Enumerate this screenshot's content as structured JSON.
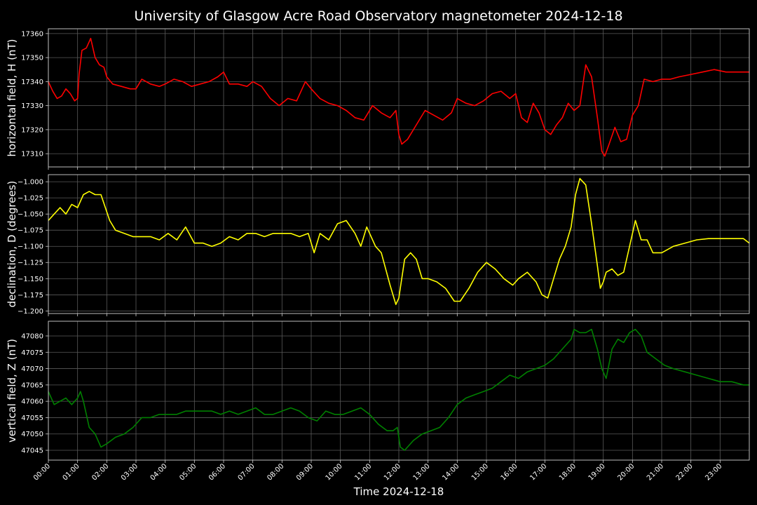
{
  "figure": {
    "title": "University of Glasgow Acre Road Observatory magnetometer 2024-12-18",
    "xlabel": "Time 2024-12-18",
    "background": "#000000",
    "grid_color": "#5a5a5a"
  },
  "chart_data": [
    {
      "type": "line",
      "name": "H",
      "ylabel": "horizontal field, H (nT)",
      "color": "#ff0000",
      "xlim": [
        0,
        24
      ],
      "ylim": [
        17304.5,
        17362
      ],
      "yticks": [
        17310,
        17320,
        17330,
        17340,
        17350,
        17360
      ],
      "ytick_labels": [
        "17310",
        "17320",
        "17330",
        "17340",
        "17350",
        "17360"
      ],
      "grid": true,
      "x": [
        0.0,
        0.15,
        0.3,
        0.45,
        0.6,
        0.75,
        0.9,
        1.0,
        1.05,
        1.15,
        1.3,
        1.45,
        1.6,
        1.75,
        1.9,
        2.0,
        2.2,
        2.5,
        2.8,
        3.0,
        3.2,
        3.5,
        3.8,
        4.0,
        4.3,
        4.6,
        4.9,
        5.2,
        5.5,
        5.8,
        6.0,
        6.2,
        6.5,
        6.8,
        7.0,
        7.3,
        7.6,
        7.9,
        8.2,
        8.5,
        8.8,
        9.0,
        9.3,
        9.6,
        9.9,
        10.2,
        10.5,
        10.8,
        11.1,
        11.4,
        11.7,
        11.9,
        12.0,
        12.1,
        12.3,
        12.6,
        12.9,
        13.2,
        13.5,
        13.8,
        14.0,
        14.3,
        14.6,
        14.9,
        15.2,
        15.5,
        15.8,
        16.0,
        16.2,
        16.4,
        16.6,
        16.8,
        17.0,
        17.2,
        17.4,
        17.6,
        17.8,
        18.0,
        18.2,
        18.4,
        18.6,
        18.8,
        18.95,
        19.05,
        19.2,
        19.4,
        19.6,
        19.8,
        20.0,
        20.2,
        20.4,
        20.7,
        21.0,
        21.3,
        21.6,
        22.0,
        22.4,
        22.8,
        23.2,
        23.6,
        24.0
      ],
      "y": [
        17340,
        17336,
        17333,
        17334,
        17337,
        17335,
        17332,
        17333,
        17343,
        17353,
        17354,
        17358,
        17350,
        17347,
        17346,
        17342,
        17339,
        17338,
        17337,
        17337,
        17341,
        17339,
        17338,
        17339,
        17341,
        17340,
        17338,
        17339,
        17340,
        17342,
        17344,
        17339,
        17339,
        17338,
        17340,
        17338,
        17333,
        17330,
        17333,
        17332,
        17340,
        17337,
        17333,
        17331,
        17330,
        17328,
        17325,
        17324,
        17330,
        17327,
        17325,
        17328,
        17318,
        17314,
        17316,
        17322,
        17328,
        17326,
        17324,
        17327,
        17333,
        17331,
        17330,
        17332,
        17335,
        17336,
        17333,
        17335,
        17325,
        17323,
        17331,
        17327,
        17320,
        17318,
        17322,
        17325,
        17331,
        17328,
        17330,
        17347,
        17342,
        17325,
        17311,
        17309,
        17314,
        17321,
        17315,
        17316,
        17326,
        17330,
        17341,
        17340,
        17341,
        17341,
        17342,
        17343,
        17344,
        17345,
        17344,
        17344,
        17344
      ]
    },
    {
      "type": "line",
      "name": "D",
      "ylabel": "declination, D (degrees)",
      "color": "#ffff00",
      "xlim": [
        0,
        24
      ],
      "ylim": [
        -1.204,
        -0.989
      ],
      "yticks": [
        -1.2,
        -1.175,
        -1.15,
        -1.125,
        -1.1,
        -1.075,
        -1.05,
        -1.025,
        -1.0
      ],
      "ytick_labels": [
        "−1.200",
        "−1.175",
        "−1.150",
        "−1.125",
        "−1.100",
        "−1.075",
        "−1.050",
        "−1.025",
        "−1.000"
      ],
      "grid": true,
      "x": [
        0.0,
        0.2,
        0.4,
        0.6,
        0.8,
        1.0,
        1.1,
        1.2,
        1.4,
        1.6,
        1.8,
        1.95,
        2.1,
        2.3,
        2.6,
        2.9,
        3.2,
        3.5,
        3.8,
        4.1,
        4.4,
        4.7,
        5.0,
        5.3,
        5.6,
        5.9,
        6.2,
        6.5,
        6.8,
        7.1,
        7.4,
        7.7,
        8.0,
        8.3,
        8.6,
        8.9,
        9.1,
        9.3,
        9.6,
        9.9,
        10.2,
        10.5,
        10.7,
        10.9,
        11.2,
        11.4,
        11.7,
        11.9,
        12.0,
        12.2,
        12.4,
        12.6,
        12.8,
        13.0,
        13.3,
        13.6,
        13.9,
        14.1,
        14.4,
        14.7,
        15.0,
        15.3,
        15.6,
        15.9,
        16.1,
        16.4,
        16.7,
        16.9,
        17.1,
        17.3,
        17.5,
        17.7,
        17.9,
        18.05,
        18.2,
        18.4,
        18.6,
        18.8,
        18.9,
        19.0,
        19.1,
        19.3,
        19.5,
        19.7,
        19.9,
        20.1,
        20.3,
        20.5,
        20.7,
        21.0,
        21.4,
        21.8,
        22.2,
        22.6,
        23.0,
        23.4,
        23.8,
        24.0
      ],
      "y": [
        -1.06,
        -1.05,
        -1.04,
        -1.05,
        -1.035,
        -1.04,
        -1.03,
        -1.02,
        -1.015,
        -1.02,
        -1.02,
        -1.04,
        -1.06,
        -1.075,
        -1.08,
        -1.085,
        -1.085,
        -1.085,
        -1.09,
        -1.08,
        -1.09,
        -1.07,
        -1.095,
        -1.095,
        -1.1,
        -1.095,
        -1.085,
        -1.09,
        -1.08,
        -1.08,
        -1.085,
        -1.08,
        -1.08,
        -1.08,
        -1.085,
        -1.08,
        -1.11,
        -1.08,
        -1.09,
        -1.065,
        -1.06,
        -1.08,
        -1.1,
        -1.07,
        -1.1,
        -1.11,
        -1.16,
        -1.19,
        -1.18,
        -1.12,
        -1.11,
        -1.12,
        -1.15,
        -1.15,
        -1.155,
        -1.165,
        -1.185,
        -1.185,
        -1.165,
        -1.14,
        -1.125,
        -1.135,
        -1.15,
        -1.16,
        -1.15,
        -1.14,
        -1.155,
        -1.175,
        -1.18,
        -1.15,
        -1.12,
        -1.1,
        -1.07,
        -1.02,
        -0.995,
        -1.005,
        -1.065,
        -1.13,
        -1.165,
        -1.155,
        -1.14,
        -1.135,
        -1.145,
        -1.14,
        -1.1,
        -1.06,
        -1.09,
        -1.09,
        -1.11,
        -1.11,
        -1.1,
        -1.095,
        -1.09,
        -1.088,
        -1.088,
        -1.088,
        -1.088,
        -1.095
      ]
    },
    {
      "type": "line",
      "name": "Z",
      "ylabel": "vertical field, Z (nT)",
      "color": "#008000",
      "xlim": [
        0,
        24
      ],
      "ylim": [
        47042,
        47084.5
      ],
      "yticks": [
        47045,
        47050,
        47055,
        47060,
        47065,
        47070,
        47075,
        47080
      ],
      "ytick_labels": [
        "47045",
        "47050",
        "47055",
        "47060",
        "47065",
        "47070",
        "47075",
        "47080"
      ],
      "grid": true,
      "x": [
        0.0,
        0.2,
        0.4,
        0.6,
        0.8,
        1.0,
        1.1,
        1.2,
        1.4,
        1.6,
        1.8,
        2.0,
        2.3,
        2.6,
        2.9,
        3.2,
        3.5,
        3.8,
        4.1,
        4.4,
        4.7,
        5.0,
        5.3,
        5.6,
        5.9,
        6.2,
        6.5,
        6.8,
        7.1,
        7.4,
        7.7,
        8.0,
        8.3,
        8.6,
        8.9,
        9.2,
        9.5,
        9.8,
        10.1,
        10.4,
        10.7,
        11.0,
        11.3,
        11.6,
        11.8,
        11.95,
        12.05,
        12.2,
        12.5,
        12.8,
        13.1,
        13.4,
        13.7,
        14.0,
        14.3,
        14.6,
        14.9,
        15.2,
        15.5,
        15.8,
        16.1,
        16.4,
        16.7,
        17.0,
        17.3,
        17.6,
        17.9,
        18.0,
        18.2,
        18.4,
        18.6,
        18.8,
        18.95,
        19.1,
        19.3,
        19.5,
        19.7,
        19.9,
        20.1,
        20.3,
        20.5,
        20.8,
        21.1,
        21.4,
        21.8,
        22.2,
        22.6,
        23.0,
        23.4,
        23.8,
        24.0
      ],
      "y": [
        47063,
        47059,
        47060,
        47061,
        47059,
        47061,
        47063,
        47060,
        47052,
        47050,
        47046,
        47047,
        47049,
        47050,
        47052,
        47055,
        47055,
        47056,
        47056,
        47056,
        47057,
        47057,
        47057,
        47057,
        47056,
        47057,
        47056,
        47057,
        47058,
        47056,
        47056,
        47057,
        47058,
        47057,
        47055,
        47054,
        47057,
        47056,
        47056,
        47057,
        47058,
        47056,
        47053,
        47051,
        47051,
        47052,
        47046,
        47045,
        47048,
        47050,
        47051,
        47052,
        47055,
        47059,
        47061,
        47062,
        47063,
        47064,
        47066,
        47068,
        47067,
        47069,
        47070,
        47071,
        47073,
        47076,
        47079,
        47082,
        47081,
        47081,
        47082,
        47076,
        47070,
        47067,
        47076,
        47079,
        47078,
        47081,
        47082,
        47080,
        47075,
        47073,
        47071,
        47070,
        47069,
        47068,
        47067,
        47066,
        47066,
        47065,
        47065
      ]
    }
  ],
  "x_axis": {
    "ticks": [
      0,
      1,
      2,
      3,
      4,
      5,
      6,
      7,
      8,
      9,
      10,
      11,
      12,
      13,
      14,
      15,
      16,
      17,
      18,
      19,
      20,
      21,
      22,
      23
    ],
    "tick_labels": [
      "00:00",
      "01:00",
      "02:00",
      "03:00",
      "04:00",
      "05:00",
      "06:00",
      "07:00",
      "08:00",
      "09:00",
      "10:00",
      "11:00",
      "12:00",
      "13:00",
      "14:00",
      "15:00",
      "16:00",
      "17:00",
      "18:00",
      "19:00",
      "20:00",
      "21:00",
      "22:00",
      "23:00"
    ],
    "tick_rotation": -45
  }
}
